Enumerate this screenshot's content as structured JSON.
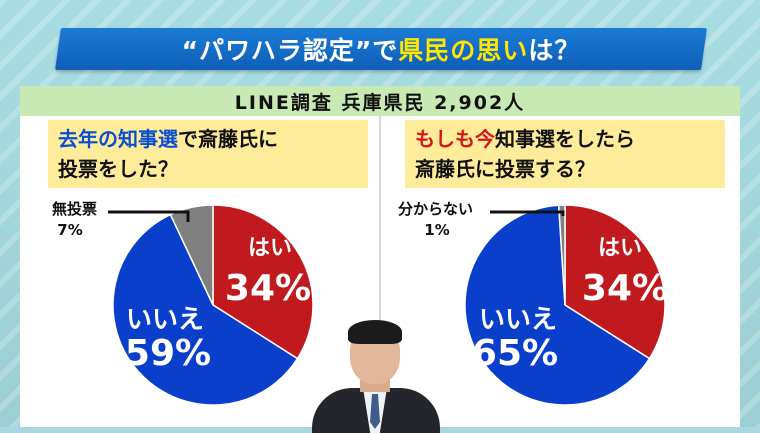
{
  "title": {
    "part1": "“パワハラ認定”で",
    "part2": "県民の思い",
    "part3": "は？"
  },
  "survey": {
    "text": "LINE調査 兵庫県民 2,902人"
  },
  "question1": {
    "blue_part": "去年の知事選",
    "rest_line1": "で斎藤氏に",
    "line2": "投票をした？"
  },
  "question2": {
    "red_part": "もしも今",
    "rest_line1": "知事選をしたら",
    "line2": "斎藤氏に投票する？"
  },
  "colors": {
    "yes": "#c01a1f",
    "no": "#0a3fcc",
    "other": "#808080",
    "title_bar": "#1470c8",
    "highlight": "#ffe600"
  },
  "chart_data": [
    {
      "type": "pie",
      "title": "去年の知事選で斎藤氏に投票をした？",
      "slices": [
        {
          "label": "はい",
          "value": 34,
          "display": "34%",
          "color": "#c01a1f"
        },
        {
          "label": "いいえ",
          "value": 59,
          "display": "59%",
          "color": "#0a3fcc"
        },
        {
          "label": "無投票",
          "value": 7,
          "display": "7%",
          "color": "#808080"
        }
      ]
    },
    {
      "type": "pie",
      "title": "もしも今知事選をしたら斎藤氏に投票する？",
      "slices": [
        {
          "label": "はい",
          "value": 34,
          "display": "34%",
          "color": "#c01a1f"
        },
        {
          "label": "いいえ",
          "value": 65,
          "display": "65%",
          "color": "#0a3fcc"
        },
        {
          "label": "分からない",
          "value": 1,
          "display": "1%",
          "color": "#808080"
        }
      ]
    }
  ]
}
